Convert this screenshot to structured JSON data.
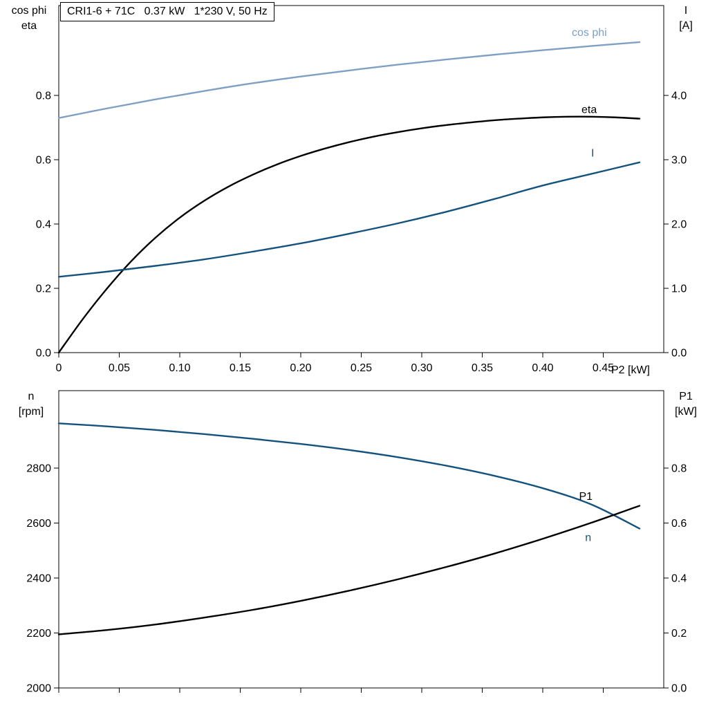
{
  "colors": {
    "axis": "#000000",
    "light_blue": "#7f9fc4",
    "dark_blue": "#14527e",
    "black": "#000000",
    "background": "#ffffff"
  },
  "chart_data": [
    {
      "id": "electrical",
      "type": "line",
      "title": "CRI1-6 + 71C   0.37 kW   1*230 V, 50 Hz",
      "grid": false,
      "legend": "inline-curve-labels",
      "x": {
        "label": "P2 [kW]",
        "min": 0,
        "max": 0.5,
        "tick_values": [
          0,
          0.05,
          0.1,
          0.15,
          0.2,
          0.25,
          0.3,
          0.35,
          0.4,
          0.45
        ],
        "tick_labels": [
          "0",
          "0.05",
          "0.10",
          "0.15",
          "0.20",
          "0.25",
          "0.30",
          "0.35",
          "0.40",
          "0.45"
        ]
      },
      "y_left": {
        "label_lines": [
          "cos phi",
          "eta"
        ],
        "min": 0,
        "max": 1.08,
        "tick_values": [
          0,
          0.2,
          0.4,
          0.6,
          0.8
        ],
        "tick_labels": [
          "0.0",
          "0.2",
          "0.4",
          "0.6",
          "0.8"
        ]
      },
      "y_right": {
        "label_lines": [
          "I",
          "[A]"
        ],
        "min": 0,
        "max": 5.4,
        "tick_values": [
          0,
          1,
          2,
          3,
          4
        ],
        "tick_labels": [
          "0.0",
          "1.0",
          "2.0",
          "3.0",
          "4.0"
        ]
      },
      "series": [
        {
          "name": "cos phi",
          "axis": "left",
          "color": "#7f9fc4",
          "label": {
            "text": "cos phi",
            "x": 0.424,
            "y": 0.985
          },
          "points": [
            [
              0,
              0.73
            ],
            [
              0.04,
              0.76
            ],
            [
              0.08,
              0.788
            ],
            [
              0.12,
              0.814
            ],
            [
              0.16,
              0.838
            ],
            [
              0.2,
              0.859
            ],
            [
              0.24,
              0.878
            ],
            [
              0.28,
              0.896
            ],
            [
              0.32,
              0.912
            ],
            [
              0.36,
              0.927
            ],
            [
              0.4,
              0.941
            ],
            [
              0.44,
              0.954
            ],
            [
              0.48,
              0.966
            ]
          ]
        },
        {
          "name": "eta",
          "axis": "left",
          "color": "#000000",
          "label": {
            "text": "eta",
            "x": 0.432,
            "y": 0.745
          },
          "points": [
            [
              0,
              0
            ],
            [
              0.02,
              0.105
            ],
            [
              0.04,
              0.2
            ],
            [
              0.06,
              0.285
            ],
            [
              0.08,
              0.358
            ],
            [
              0.1,
              0.42
            ],
            [
              0.12,
              0.472
            ],
            [
              0.14,
              0.516
            ],
            [
              0.16,
              0.553
            ],
            [
              0.18,
              0.585
            ],
            [
              0.2,
              0.612
            ],
            [
              0.22,
              0.635
            ],
            [
              0.24,
              0.655
            ],
            [
              0.26,
              0.672
            ],
            [
              0.28,
              0.686
            ],
            [
              0.3,
              0.698
            ],
            [
              0.32,
              0.708
            ],
            [
              0.34,
              0.716
            ],
            [
              0.36,
              0.723
            ],
            [
              0.38,
              0.728
            ],
            [
              0.4,
              0.732
            ],
            [
              0.42,
              0.734
            ],
            [
              0.44,
              0.734
            ],
            [
              0.46,
              0.732
            ],
            [
              0.48,
              0.728
            ]
          ]
        },
        {
          "name": "I",
          "axis": "right",
          "color": "#14527e",
          "label": {
            "text": "I",
            "x": 0.44,
            "y": 3.05
          },
          "points": [
            [
              0,
              1.18
            ],
            [
              0.04,
              1.26
            ],
            [
              0.08,
              1.35
            ],
            [
              0.12,
              1.45
            ],
            [
              0.16,
              1.57
            ],
            [
              0.2,
              1.7
            ],
            [
              0.24,
              1.85
            ],
            [
              0.28,
              2.01
            ],
            [
              0.32,
              2.19
            ],
            [
              0.36,
              2.39
            ],
            [
              0.4,
              2.6
            ],
            [
              0.44,
              2.78
            ],
            [
              0.48,
              2.96
            ]
          ]
        }
      ]
    },
    {
      "id": "speed-power",
      "type": "line",
      "title": "",
      "grid": false,
      "legend": "inline-curve-labels",
      "x": {
        "label": "",
        "min": 0,
        "max": 0.5,
        "tick_values": [
          0,
          0.05,
          0.1,
          0.15,
          0.2,
          0.25,
          0.3,
          0.35,
          0.4,
          0.45
        ],
        "tick_labels": []
      },
      "y_left": {
        "label_lines": [
          "n",
          "[rpm]"
        ],
        "min": 2000,
        "max": 3082,
        "tick_values": [
          2000,
          2200,
          2400,
          2600,
          2800
        ],
        "tick_labels": [
          "2000",
          "2200",
          "2400",
          "2600",
          "2800"
        ]
      },
      "y_right": {
        "label_lines": [
          "P1",
          "[kW]"
        ],
        "min": 0,
        "max": 1.082,
        "tick_values": [
          0,
          0.2,
          0.4,
          0.6,
          0.8
        ],
        "tick_labels": [
          "0.0",
          "0.2",
          "0.4",
          "0.6",
          "0.8"
        ]
      },
      "series": [
        {
          "name": "n",
          "axis": "left",
          "color": "#14527e",
          "label": {
            "text": "n",
            "x": 0.435,
            "y": 2535
          },
          "points": [
            [
              0,
              2963
            ],
            [
              0.04,
              2952
            ],
            [
              0.08,
              2939
            ],
            [
              0.12,
              2924
            ],
            [
              0.16,
              2907
            ],
            [
              0.2,
              2888
            ],
            [
              0.24,
              2866
            ],
            [
              0.28,
              2840
            ],
            [
              0.32,
              2809
            ],
            [
              0.36,
              2772
            ],
            [
              0.4,
              2727
            ],
            [
              0.44,
              2668
            ],
            [
              0.48,
              2580
            ]
          ]
        },
        {
          "name": "P1",
          "axis": "right",
          "color": "#000000",
          "label": {
            "text": "P1",
            "x": 0.43,
            "y": 0.685
          },
          "points": [
            [
              0,
              0.195
            ],
            [
              0.04,
              0.211
            ],
            [
              0.08,
              0.231
            ],
            [
              0.12,
              0.256
            ],
            [
              0.16,
              0.284
            ],
            [
              0.2,
              0.317
            ],
            [
              0.24,
              0.354
            ],
            [
              0.28,
              0.395
            ],
            [
              0.32,
              0.44
            ],
            [
              0.36,
              0.489
            ],
            [
              0.4,
              0.543
            ],
            [
              0.44,
              0.601
            ],
            [
              0.48,
              0.663
            ]
          ]
        }
      ]
    }
  ]
}
